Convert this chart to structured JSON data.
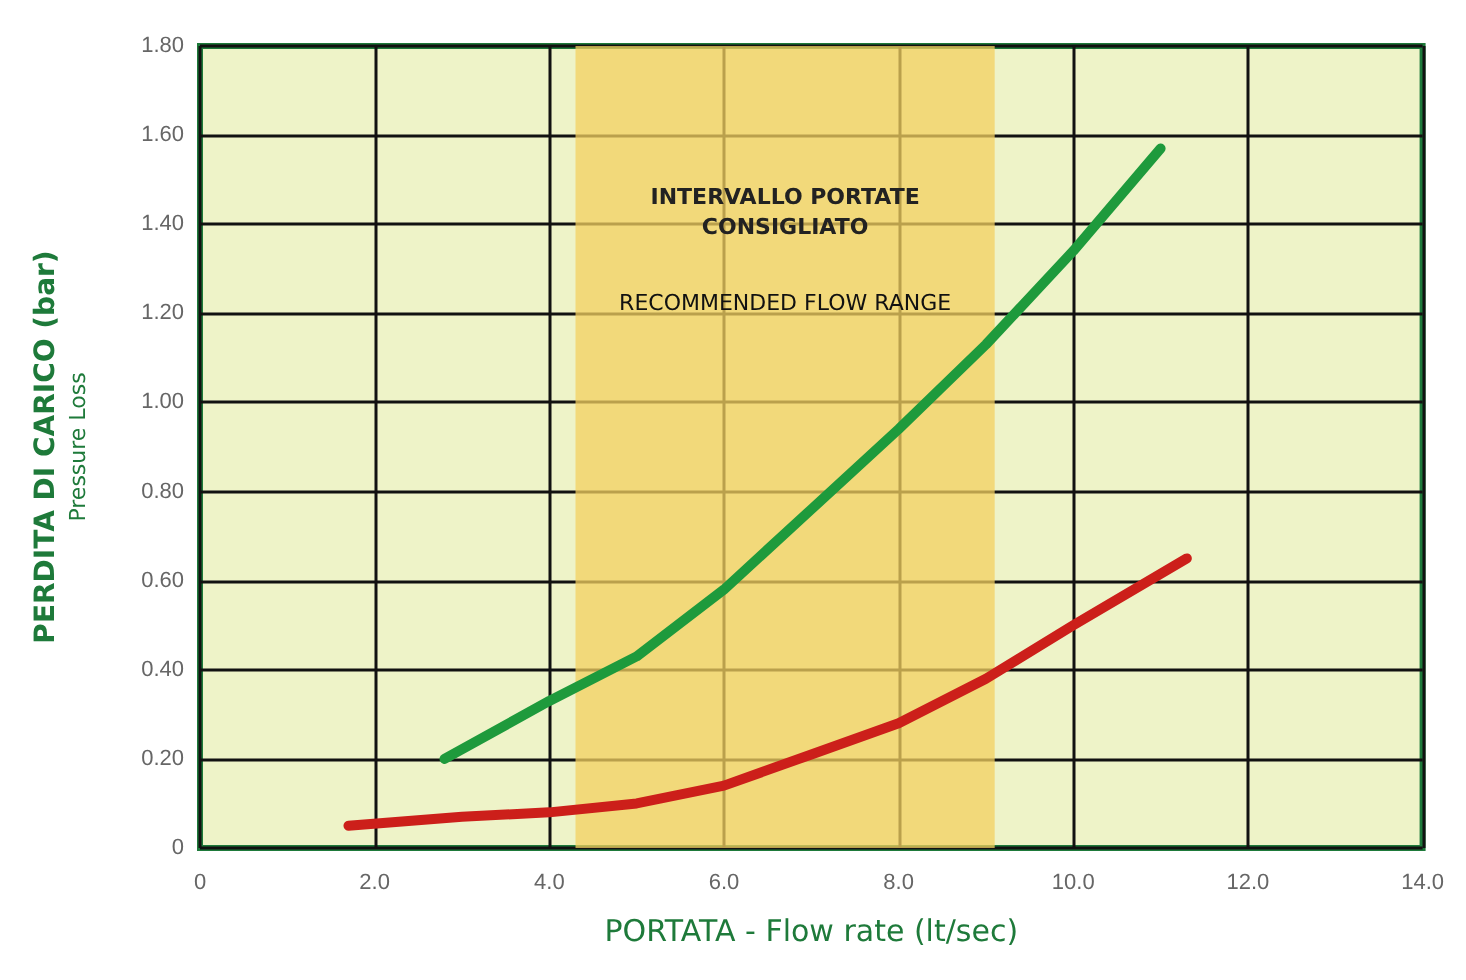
{
  "chart_data": {
    "type": "line",
    "xlabel": "PORTATA - Flow rate (lt/sec)",
    "ylabel": "PERDITA DI CARICO (bar)\nPressure Loss",
    "xlim": [
      0,
      14
    ],
    "ylim": [
      0,
      1.8
    ],
    "xticks": [
      0,
      {
        "value": 2,
        "label": "2.0"
      },
      {
        "value": 4,
        "label": "4.0"
      },
      {
        "value": 6,
        "label": "6.0"
      },
      {
        "value": 8,
        "label": "8.0"
      },
      {
        "value": 10,
        "label": "10.0"
      },
      {
        "value": 12,
        "label": "12.0"
      },
      {
        "value": 14,
        "label": "14.0"
      }
    ],
    "yticks": [
      0,
      {
        "value": 0.2,
        "label": "0.20"
      },
      {
        "value": 0.4,
        "label": "0.40"
      },
      {
        "value": 0.6,
        "label": "0.60"
      },
      {
        "value": 0.8,
        "label": "0.80"
      },
      {
        "value": 1,
        "label": "1.00"
      },
      {
        "value": 1.2,
        "label": "1.20"
      },
      {
        "value": 1.4,
        "label": "1.40"
      },
      {
        "value": 1.6,
        "label": "1.60"
      },
      {
        "value": 1.8,
        "label": "1.80"
      }
    ],
    "grid": true,
    "marker": "none",
    "line_style": "solid",
    "series": [
      {
        "color": "#1e9a3c",
        "x": [
          2.8,
          4.0,
          5.0,
          6.0,
          7.0,
          8.0,
          9.0,
          10.0,
          11.0
        ],
        "values": [
          0.2,
          0.33,
          0.43,
          0.58,
          0.76,
          0.94,
          1.13,
          1.34,
          1.57
        ]
      },
      {
        "color": "#cc1f1a",
        "x": [
          1.7,
          3.0,
          4.0,
          5.0,
          6.0,
          7.0,
          8.0,
          9.0,
          10.0,
          11.3
        ],
        "values": [
          0.05,
          0.07,
          0.08,
          0.1,
          0.14,
          0.21,
          0.28,
          0.38,
          0.5,
          0.65
        ]
      }
    ],
    "bands": [
      {
        "axis": "x",
        "from": 4.3,
        "to": 9.1,
        "label": "INTERVALLO PORTATE\nCONSIGLIATO",
        "color": "#f3d060"
      }
    ],
    "annotations": [
      "RECOMMENDED FLOW RANGE"
    ]
  }
}
